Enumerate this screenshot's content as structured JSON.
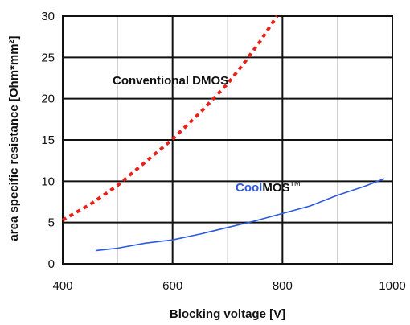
{
  "chart_data": {
    "type": "line",
    "xlabel": "Blocking voltage [V]",
    "ylabel": "area specific resistance [Ohm*mm²]",
    "xlim": [
      400,
      1000
    ],
    "ylim": [
      0,
      30
    ],
    "x_ticks": [
      "400",
      "600",
      "800",
      "1000"
    ],
    "y_ticks": [
      "0",
      "5",
      "10",
      "15",
      "20",
      "25",
      "30"
    ],
    "grid": true,
    "series": [
      {
        "name": "Conventional DMOS",
        "style": "dashed",
        "color": "#e8221b",
        "x": [
          400,
          450,
          500,
          550,
          600,
          650,
          700,
          730,
          760,
          790
        ],
        "y": [
          5.3,
          7.2,
          9.5,
          12.3,
          15.1,
          18.3,
          21.8,
          24.3,
          27.0,
          30.0
        ]
      },
      {
        "name": "CoolMOS™",
        "style": "solid",
        "color": "#2d5ae0",
        "x": [
          460,
          500,
          550,
          600,
          650,
          700,
          750,
          800,
          850,
          900,
          950,
          985
        ],
        "y": [
          1.6,
          1.9,
          2.5,
          2.9,
          3.6,
          4.4,
          5.2,
          6.1,
          7.0,
          8.3,
          9.4,
          10.3
        ]
      }
    ],
    "annotations": {
      "dmos_label": "Conventional DMOS",
      "cool_part": "Cool",
      "mos_part": "MOS",
      "tm_part": "TM"
    }
  }
}
